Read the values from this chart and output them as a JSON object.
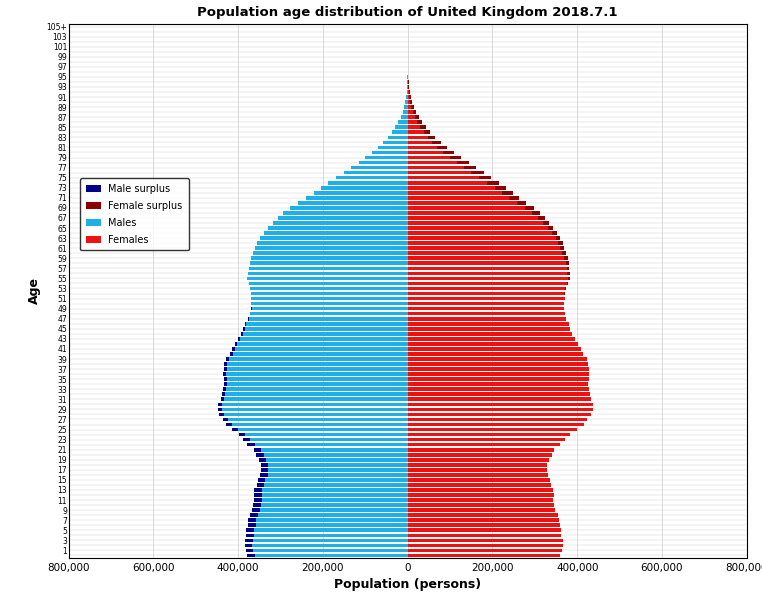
{
  "title": "Population age distribution of United Kingdom 2018.7.1",
  "xlabel": "Population (persons)",
  "ylabel": "Age",
  "xlim": 800000,
  "xticks": [
    -800000,
    -600000,
    -400000,
    -200000,
    0,
    200000,
    400000,
    600000,
    800000
  ],
  "xtick_labels": [
    "800,000",
    "600,000",
    "400,000",
    "200,000",
    "0",
    "200,000",
    "400,000",
    "600,000",
    "800,000"
  ],
  "colors": {
    "male": "#1EAEE8",
    "female": "#EE1111",
    "male_surplus": "#00008B",
    "female_surplus": "#8B0000"
  },
  "ages": [
    0,
    1,
    2,
    3,
    4,
    5,
    6,
    7,
    8,
    9,
    10,
    11,
    12,
    13,
    14,
    15,
    16,
    17,
    18,
    19,
    20,
    21,
    22,
    23,
    24,
    25,
    26,
    27,
    28,
    29,
    30,
    31,
    32,
    33,
    34,
    35,
    36,
    37,
    38,
    39,
    40,
    41,
    42,
    43,
    44,
    45,
    46,
    47,
    48,
    49,
    50,
    51,
    52,
    53,
    54,
    55,
    56,
    57,
    58,
    59,
    60,
    61,
    62,
    63,
    64,
    65,
    66,
    67,
    68,
    69,
    70,
    71,
    72,
    73,
    74,
    75,
    76,
    77,
    78,
    79,
    80,
    81,
    82,
    83,
    84,
    85,
    86,
    87,
    88,
    89,
    90,
    91,
    92,
    93,
    94,
    95,
    96,
    97,
    98,
    99,
    100,
    101,
    102,
    103,
    104,
    105
  ],
  "males": [
    377914,
    382045,
    383803,
    382918,
    381474,
    380551,
    376948,
    375761,
    372481,
    367705,
    364905,
    362494,
    363137,
    361862,
    356524,
    352699,
    347704,
    346211,
    345888,
    349773,
    357481,
    363609,
    378539,
    388157,
    398689,
    415199,
    428767,
    435494,
    444564,
    446621,
    447210,
    441173,
    437385,
    434578,
    433854,
    433977,
    435396,
    433928,
    432649,
    428975,
    418285,
    413329,
    406481,
    399820,
    392601,
    387453,
    384095,
    376565,
    373000,
    369793,
    369423,
    370175,
    369618,
    372218,
    375043,
    378512,
    376878,
    375000,
    373000,
    370000,
    365000,
    360000,
    355000,
    349000,
    340000,
    330000,
    318500,
    307000,
    294000,
    277000,
    258000,
    239000,
    222000,
    205000,
    187000,
    168000,
    150000,
    133000,
    116000,
    100000,
    84000,
    70000,
    58000,
    47000,
    37500,
    29000,
    22000,
    16500,
    12000,
    8500,
    5800,
    3900,
    2500,
    1600,
    1000,
    600,
    350,
    200,
    110,
    60,
    30,
    15,
    8,
    4,
    2,
    1
  ],
  "females": [
    360156,
    363919,
    366117,
    365297,
    362756,
    361649,
    358523,
    357268,
    354046,
    348753,
    346177,
    344037,
    344743,
    342997,
    339046,
    335456,
    330696,
    328797,
    329261,
    333562,
    340000,
    346000,
    360000,
    372000,
    384000,
    400000,
    415000,
    424000,
    433000,
    437000,
    438000,
    433000,
    430000,
    427500,
    426500,
    427000,
    428500,
    427000,
    426000,
    422500,
    413000,
    408000,
    401500,
    395000,
    388000,
    383500,
    381000,
    374000,
    371000,
    368000,
    369000,
    371000,
    371500,
    374000,
    377500,
    382000,
    382000,
    381000,
    380000,
    378000,
    374000,
    370000,
    366000,
    360000,
    352000,
    343000,
    334000,
    324000,
    313000,
    297000,
    280000,
    263000,
    248000,
    232000,
    215000,
    197000,
    179000,
    161000,
    144000,
    126000,
    109000,
    93000,
    78000,
    65000,
    53000,
    43000,
    34000,
    26500,
    19500,
    14000,
    9800,
    6800,
    4600,
    3100,
    2000,
    1300,
    800,
    450,
    250,
    140,
    70,
    35,
    18,
    9,
    4,
    2
  ]
}
